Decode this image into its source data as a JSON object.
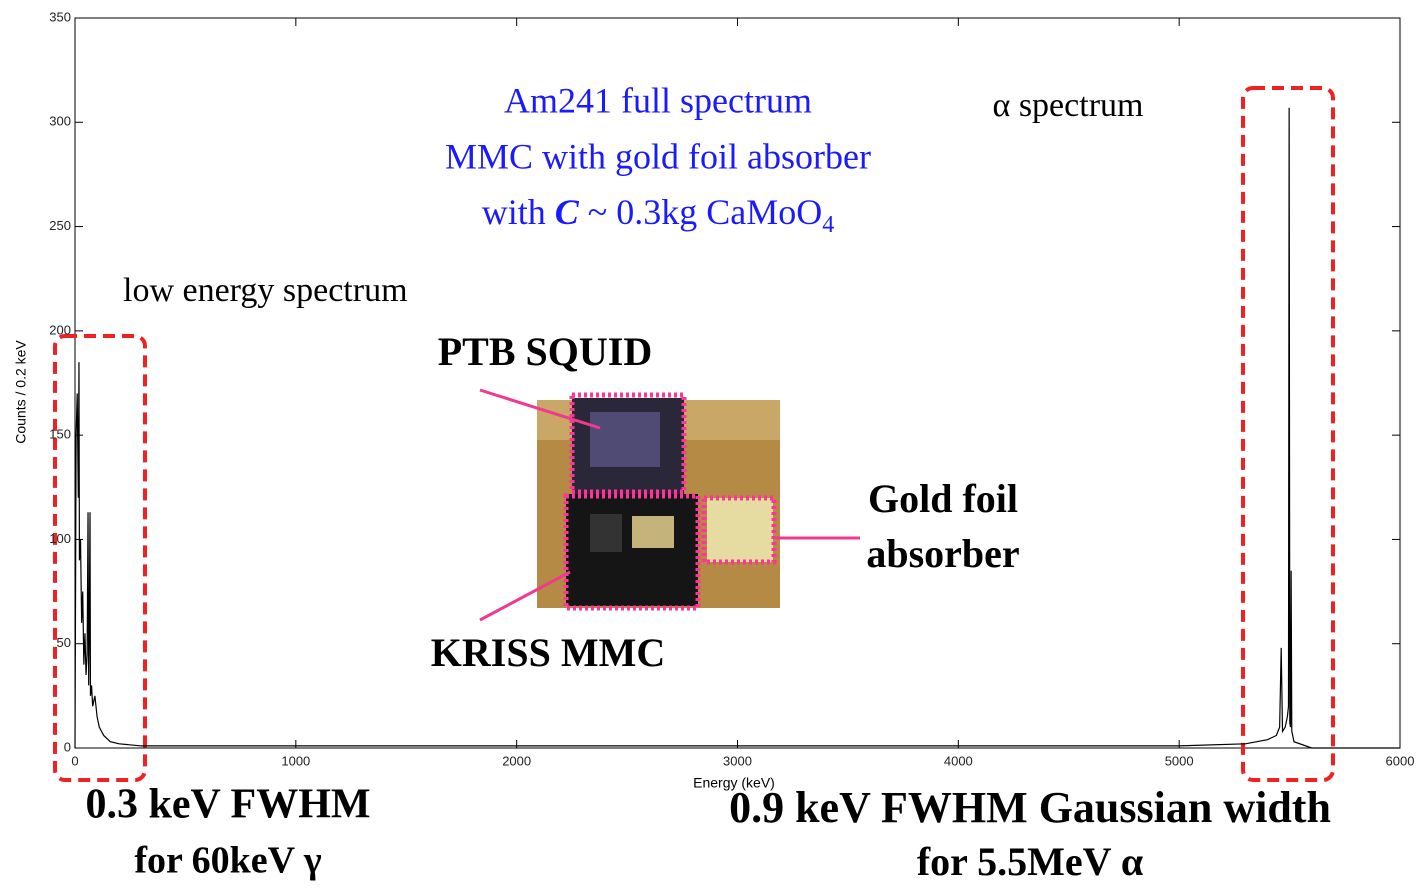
{
  "chart_data": {
    "type": "line",
    "xlabel": "Energy (keV)",
    "ylabel": "Counts / 0.2 keV",
    "color": "#000000",
    "x": [
      0,
      5,
      10,
      15,
      18,
      20,
      25,
      30,
      35,
      40,
      45,
      50,
      55,
      59,
      62,
      65,
      68,
      70,
      75,
      80,
      90,
      100,
      110,
      130,
      160,
      200,
      300,
      600,
      1000,
      2000,
      3000,
      4000,
      5000,
      5300,
      5400,
      5440,
      5455,
      5462,
      5468,
      5480,
      5490,
      5495,
      5498,
      5501,
      5504,
      5507,
      5510,
      5520,
      5600,
      6000
    ],
    "values": [
      0,
      150,
      170,
      120,
      185,
      90,
      100,
      60,
      75,
      40,
      55,
      35,
      45,
      113,
      30,
      60,
      113,
      25,
      30,
      20,
      25,
      15,
      10,
      6,
      3,
      2,
      1,
      1,
      1,
      1,
      1,
      1,
      1,
      2,
      4,
      6,
      10,
      48,
      8,
      10,
      15,
      20,
      307,
      12,
      10,
      85,
      8,
      3,
      0,
      0
    ],
    "xlim": [
      0,
      6000
    ],
    "ylim": [
      0,
      350
    ],
    "xticks": [
      0,
      1000,
      2000,
      3000,
      4000,
      5000,
      6000
    ],
    "yticks": [
      0,
      50,
      100,
      150,
      200,
      250,
      300,
      350
    ],
    "grid": false,
    "title_lines": [
      "Am241 full spectrum",
      "MMC with gold foil absorber"
    ],
    "title_last_line": {
      "prefix": "with ",
      "symbol": "C",
      "middle": " ~ 0.3kg CaMoO",
      "subscript": "4"
    },
    "annotations": [
      "α spectrum",
      "low energy spectrum",
      "PTB SQUID",
      "KRISS MMC",
      "Gold foil",
      "absorber",
      "0.3 keV FWHM",
      "for 60keV γ",
      "0.9 keV FWHM Gaussian width",
      "for 5.5MeV α"
    ]
  }
}
